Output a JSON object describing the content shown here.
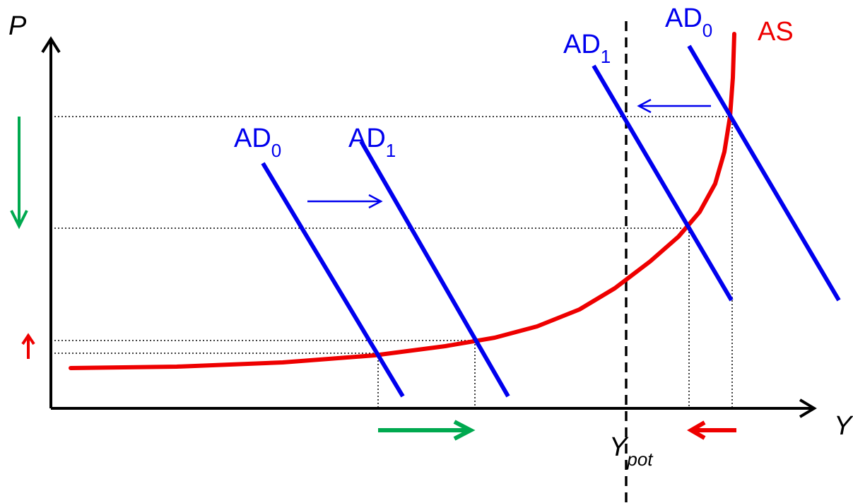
{
  "axes": {
    "y_label": "P",
    "x_label": "Y",
    "potential_label_main": "Y",
    "potential_label_sub": "pot"
  },
  "curves": {
    "as_label": "AS",
    "left_ad0_main": "AD",
    "left_ad0_sub": "0",
    "left_ad1_main": "AD",
    "left_ad1_sub": "1",
    "right_ad0_main": "AD",
    "right_ad0_sub": "0",
    "right_ad1_main": "AD",
    "right_ad1_sub": "1"
  },
  "colors": {
    "ad": "#0000ee",
    "as": "#ee0000",
    "axis": "#000000",
    "green_arrow": "#00a94f",
    "red_arrow": "#ee0000"
  }
}
